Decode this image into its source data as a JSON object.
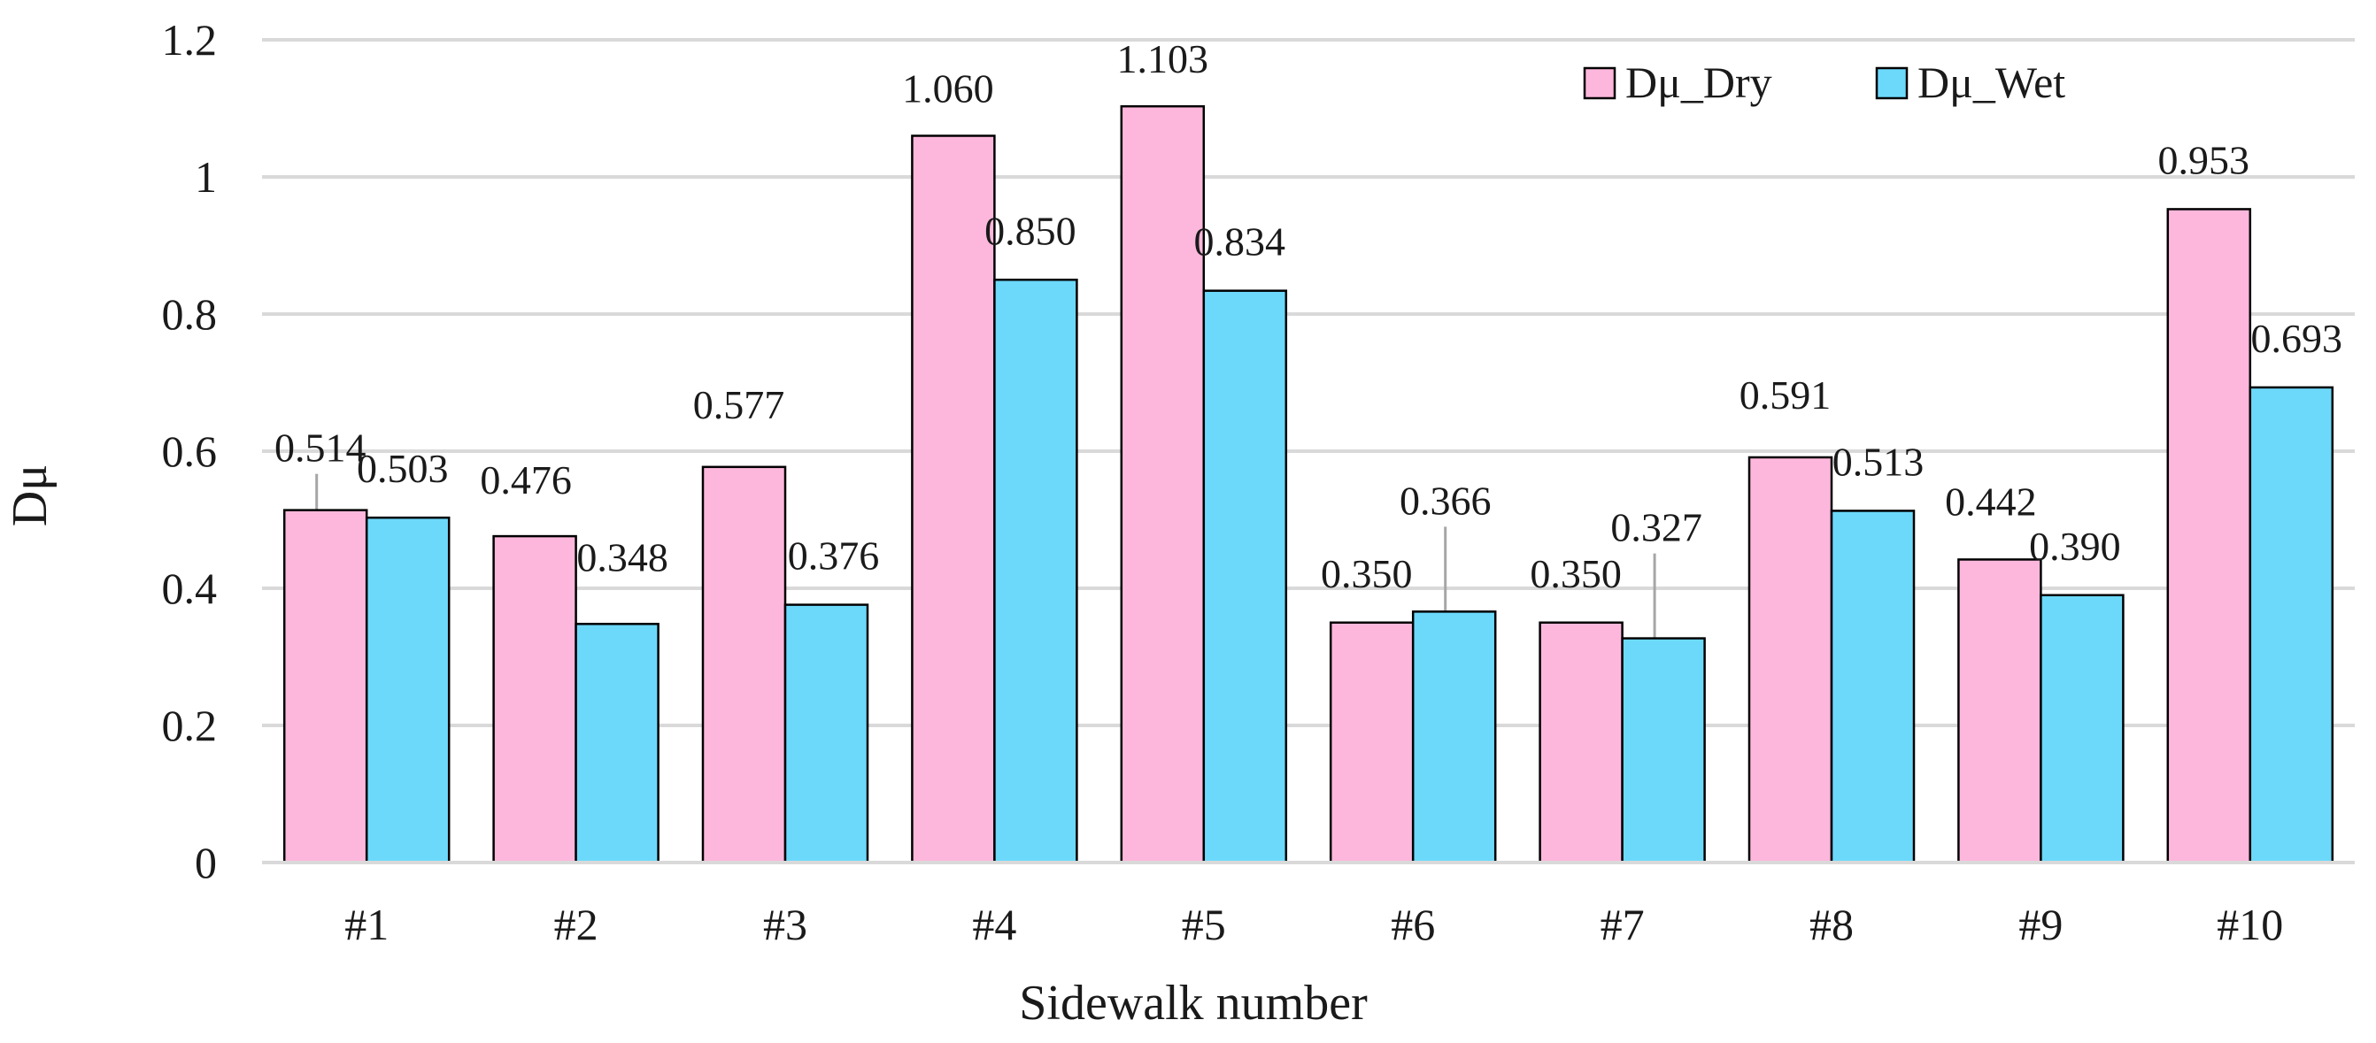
{
  "chart_data": {
    "type": "bar",
    "title": "",
    "xlabel": "Sidewalk number",
    "ylabel": "Dμ",
    "ylim": [
      0,
      1.2
    ],
    "yticks": [
      "0",
      "0.2",
      "0.4",
      "0.6",
      "0.8",
      "1",
      "1.2"
    ],
    "categories": [
      "#1",
      "#2",
      "#3",
      "#4",
      "#5",
      "#6",
      "#7",
      "#8",
      "#9",
      "#10"
    ],
    "series": [
      {
        "name": "Dμ_Dry",
        "color": "#FDB7DC",
        "values": [
          0.514,
          0.476,
          0.577,
          1.06,
          1.103,
          0.35,
          0.35,
          0.591,
          0.442,
          0.953
        ],
        "labels": [
          "0.514",
          "0.476",
          "0.577",
          "1.060",
          "1.103",
          "0.350",
          "0.350",
          "0.591",
          "0.442",
          "0.953"
        ]
      },
      {
        "name": "Dμ_Wet",
        "color": "#6CD9FB",
        "values": [
          0.503,
          0.348,
          0.376,
          0.85,
          0.834,
          0.366,
          0.327,
          0.513,
          0.39,
          0.693
        ],
        "labels": [
          "0.503",
          "0.348",
          "0.376",
          "0.850",
          "0.834",
          "0.366",
          "0.327",
          "0.513",
          "0.390",
          "0.693"
        ]
      }
    ],
    "grid": true,
    "legend_position": "top-right"
  }
}
